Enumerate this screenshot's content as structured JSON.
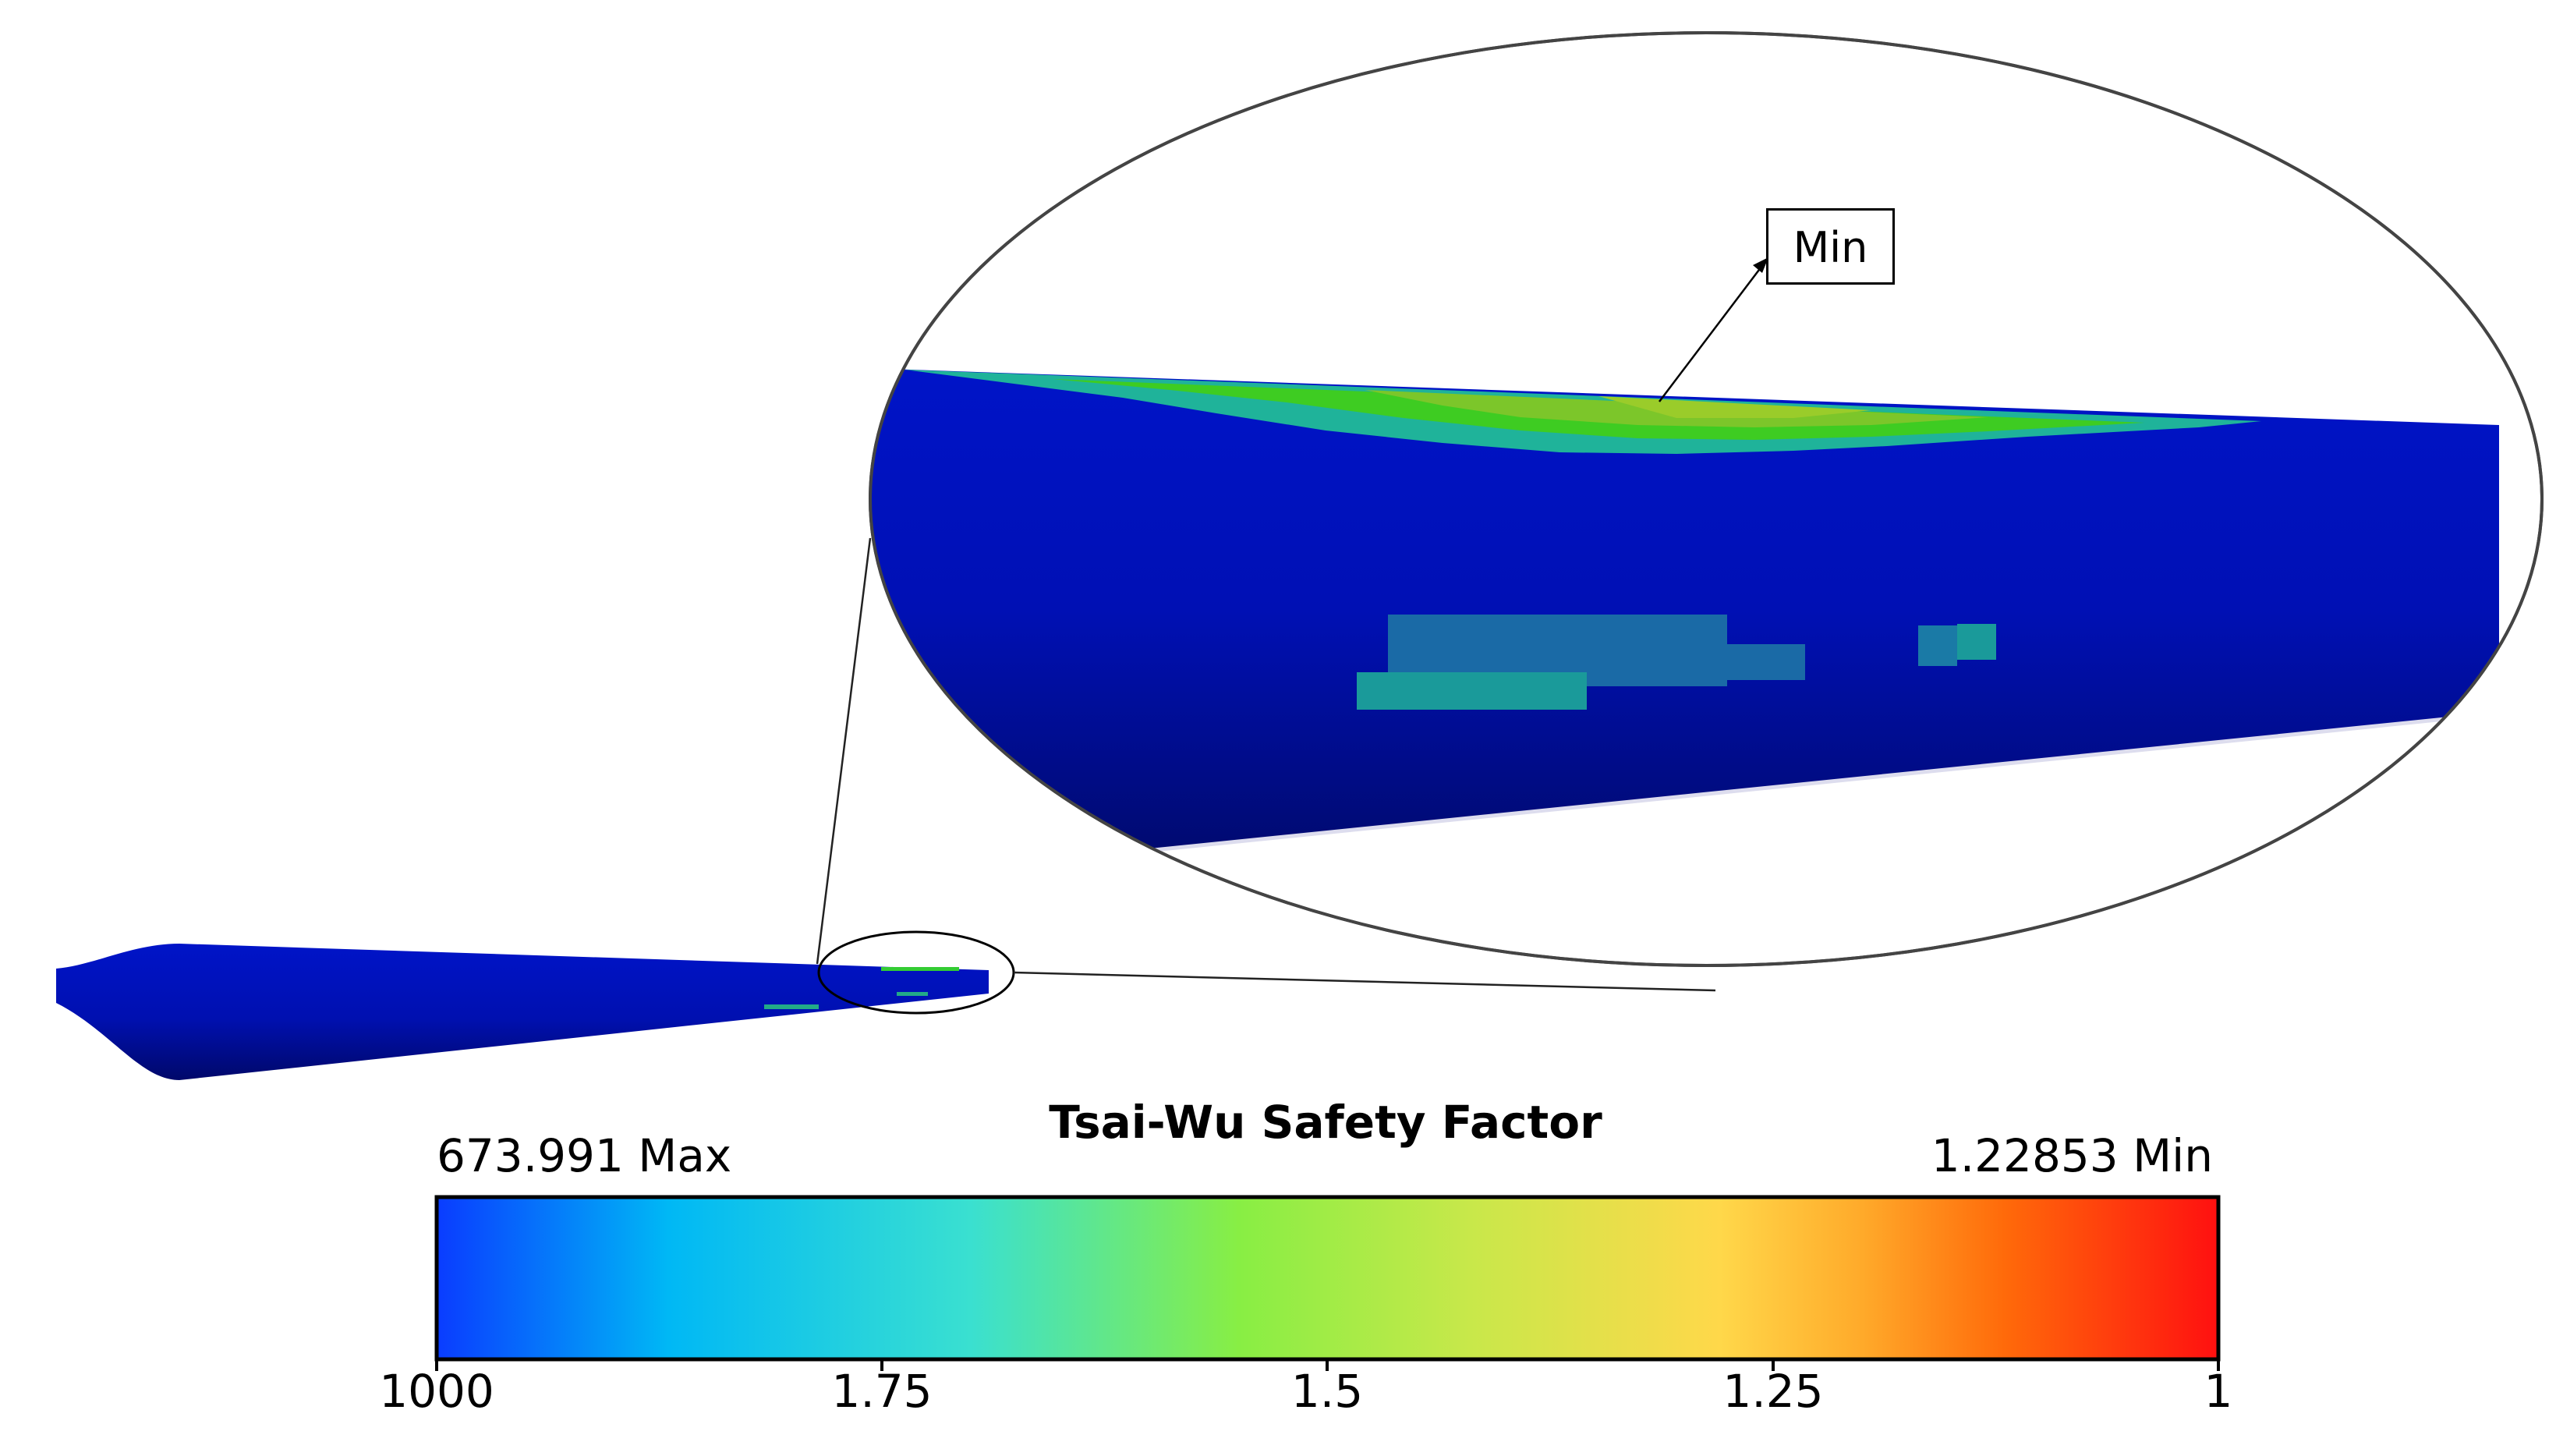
{
  "figure": {
    "callout_label": "Min"
  },
  "colorbar": {
    "title": "Tsai-Wu Safety Factor",
    "max_label": "673.991 Max",
    "min_label": "1.22853 Min",
    "ticks": [
      "1000",
      "1.75",
      "1.5",
      "1.25",
      "1"
    ],
    "gradient_colors": [
      "#0a3cff",
      "#00b8f5",
      "#3ae0d0",
      "#88ee44",
      "#c8e84a",
      "#ffd84a",
      "#ff8a1a",
      "#ff3a0a",
      "#ff0f0f"
    ]
  },
  "colors": {
    "blade_dark": "#000a6e",
    "blade_mid": "#0010b8",
    "damage_green": "#33cc11",
    "damage_cyan": "#22aaaa",
    "damage_teal": "#1a8a9a"
  }
}
